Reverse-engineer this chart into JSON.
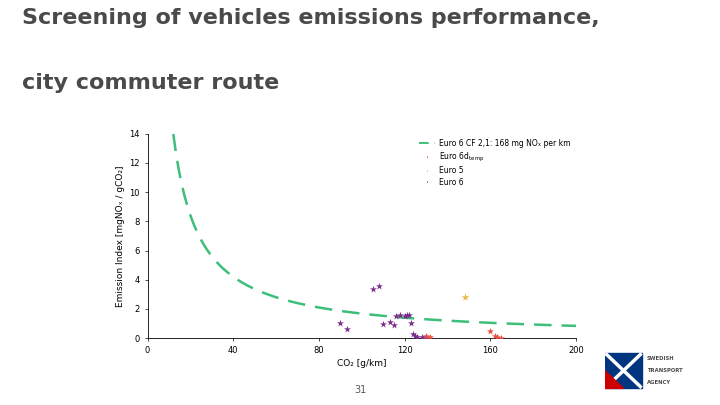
{
  "title_line1": "Screening of vehicles emissions performance,",
  "title_line2": "city commuter route",
  "xlabel": "CO₂ [g/km]",
  "ylabel": "Emission Index [mgNOₓ / gCO₂]",
  "xlim": [
    0,
    200
  ],
  "ylim": [
    0,
    14
  ],
  "xticks": [
    0,
    40,
    80,
    120,
    160,
    200
  ],
  "yticks": [
    0,
    2,
    4,
    6,
    8,
    10,
    12,
    14
  ],
  "curve_nox_limit": 168,
  "background_color": "#ffffff",
  "curve_color": "#3dbf7a",
  "legend_curve_label": "Euro 6 CF 2,1: 168 mg NOₓ per km",
  "legend_euro6dtemp_label": "Euro 6d",
  "legend_euro5_label": "Euro 5",
  "legend_euro6_label": "Euro 6",
  "euro6dtemp_color": "#e74c3c",
  "euro5_color": "#e8b84b",
  "euro6_color": "#7b2d8b",
  "euro6dtemp_points": [
    [
      130,
      0.12
    ],
    [
      132,
      0.06
    ],
    [
      160,
      0.48
    ],
    [
      162,
      0.18
    ],
    [
      163,
      0.08
    ],
    [
      165,
      0.04
    ]
  ],
  "euro5_points": [
    [
      148,
      2.8
    ]
  ],
  "euro6_points": [
    [
      90,
      1.05
    ],
    [
      93,
      0.62
    ],
    [
      105,
      3.35
    ],
    [
      108,
      3.55
    ],
    [
      110,
      1.0
    ],
    [
      113,
      1.08
    ],
    [
      115,
      0.88
    ],
    [
      116,
      1.5
    ],
    [
      118,
      1.58
    ],
    [
      120,
      1.52
    ],
    [
      121,
      1.62
    ],
    [
      122,
      1.58
    ],
    [
      123,
      1.02
    ],
    [
      124,
      0.28
    ],
    [
      125,
      0.14
    ],
    [
      126,
      0.08
    ],
    [
      128,
      0.1
    ],
    [
      130,
      0.08
    ]
  ],
  "page_number": "31",
  "title_fontsize": 16,
  "axis_fontsize": 6.5,
  "tick_fontsize": 6,
  "legend_fontsize": 5.5
}
